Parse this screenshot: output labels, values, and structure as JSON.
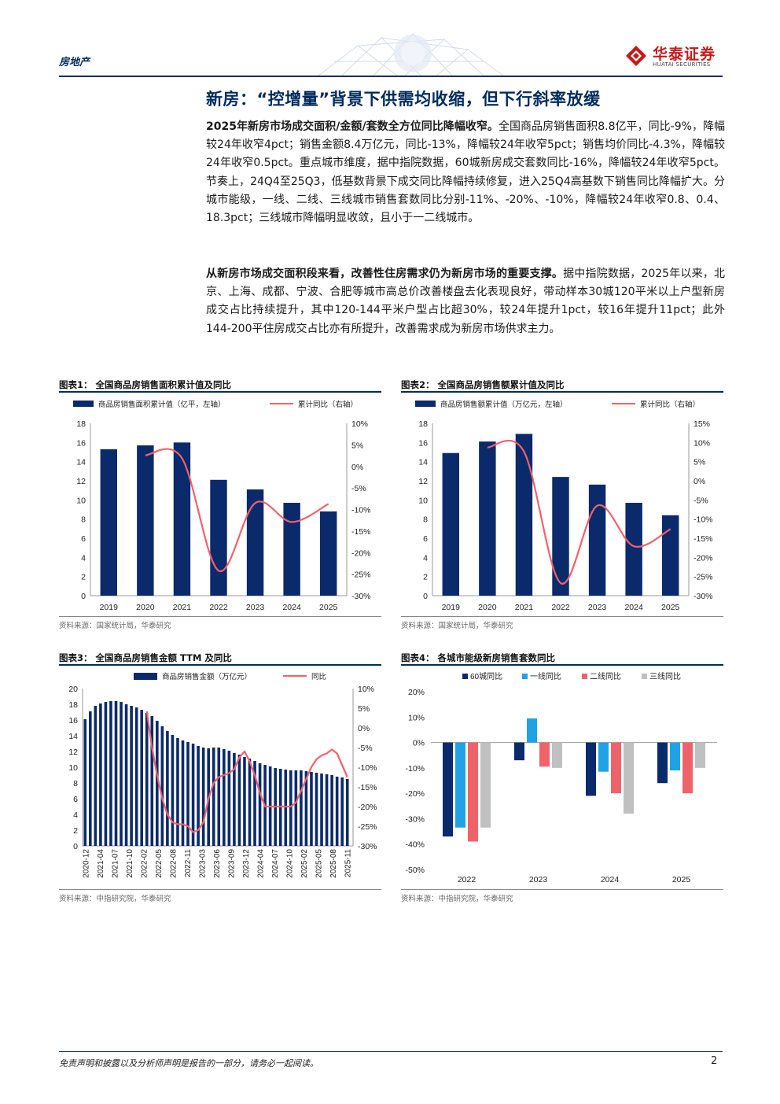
{
  "header": {
    "sector": "房地产",
    "logo_cn": "华泰证券",
    "logo_en": "HUATAI SECURITIES"
  },
  "section_title": "新房：“控增量”背景下供需均收缩，但下行斜率放缓",
  "paragraph1": {
    "bold": "2025年新房市场成交面积/金额/套数全方位同比降幅收窄。",
    "text": "全国商品房销售面积8.8亿平，同比-9%，降幅较24年收窄4pct；销售金额8.4万亿元，同比-13%，降幅较24年收窄5pct；销售均价同比-4.3%，降幅较24年收窄0.5pct。重点城市维度，据中指院数据，60城新房成交套数同比-16%，降幅较24年收窄5pct。节奏上，24Q4至25Q3，低基数背景下成交同比降幅持续修复，进入25Q4高基数下销售同比降幅扩大。分城市能级，一线、二线、三线城市销售套数同比分别-11%、-20%、-10%，降幅较24年收窄0.8、0.4、18.3pct；三线城市降幅明显收敛，且小于一二线城市。"
  },
  "paragraph2": {
    "bold": "从新房市场成交面积段来看，改善性住房需求仍为新房市场的重要支撑。",
    "text": "据中指院数据，2025年以来，北京、上海、成都、宁波、合肥等城市高总价改善楼盘去化表现良好，带动样本30城120平米以上户型新房成交占比持续提升，其中120-144平米户型占比超30%，较24年提升1pct，较16年提升11pct；此外144-200平住房成交占比亦有所提升，改善需求成为新房市场供求主力。"
  },
  "chart_data": [
    {
      "type": "bar",
      "title": "图表1：  全国商品房销售面积累计值及同比",
      "source": "资料来源：国家统计局，华泰研究",
      "categories": [
        "2019",
        "2020",
        "2021",
        "2022",
        "2023",
        "2024",
        "2025"
      ],
      "series": [
        {
          "name": "商品房销售面积累计值（亿平，左轴）",
          "type": "bar",
          "axis": "left",
          "values": [
            15.3,
            15.7,
            16.0,
            12.1,
            11.1,
            9.7,
            8.8
          ]
        },
        {
          "name": "累计同比（右轴）",
          "type": "line",
          "axis": "right",
          "values": [
            null,
            2.6,
            1.9,
            -24.2,
            -8.5,
            -12.9,
            -8.7
          ]
        }
      ],
      "ylim_left": [
        0,
        18
      ],
      "yticks_left": [
        0,
        2,
        4,
        6,
        8,
        10,
        12,
        14,
        16,
        18
      ],
      "ylim_right": [
        -30,
        10
      ],
      "yticks_right": [
        "-30%",
        "-25%",
        "-20%",
        "-15%",
        "-10%",
        "-5%",
        "0%",
        "5%",
        "10%"
      ],
      "colors": {
        "bar": "#0b2a6b",
        "line": "#f0626a"
      }
    },
    {
      "type": "bar",
      "title": "图表2：  全国商品房销售额累计值及同比",
      "source": "资料来源：国家统计局，华泰研究",
      "categories": [
        "2019",
        "2020",
        "2021",
        "2022",
        "2023",
        "2024",
        "2025"
      ],
      "series": [
        {
          "name": "商品房销售额累计值（万亿元，左轴）",
          "type": "bar",
          "axis": "left",
          "values": [
            14.9,
            16.1,
            16.9,
            12.4,
            11.6,
            9.7,
            8.4
          ]
        },
        {
          "name": "累计同比（右轴）",
          "type": "line",
          "axis": "right",
          "values": [
            null,
            8.7,
            7.6,
            -26.7,
            -6.5,
            -17.1,
            -12.6
          ]
        }
      ],
      "ylim_left": [
        0,
        18
      ],
      "yticks_left": [
        0,
        2,
        4,
        6,
        8,
        10,
        12,
        14,
        16,
        18
      ],
      "ylim_right": [
        -30,
        15
      ],
      "yticks_right": [
        "-30%",
        "-25%",
        "-20%",
        "-15%",
        "-10%",
        "-5%",
        "0%",
        "5%",
        "10%",
        "15%"
      ],
      "colors": {
        "bar": "#0b2a6b",
        "line": "#f0626a"
      }
    },
    {
      "type": "bar",
      "title": "图表3：  全国商品房销售金额 TTM 及同比",
      "source": "资料来源：中指研究院，华泰研究",
      "x_tick_labels": [
        "2020-12",
        "2021-04",
        "2021-07",
        "2021-10",
        "2022-02",
        "2022-05",
        "2022-08",
        "2022-11",
        "2023-03",
        "2023-06",
        "2023-09",
        "2023-12",
        "2024-04",
        "2024-07",
        "2024-10",
        "2025-02",
        "2025-05",
        "2025-08",
        "2025-11"
      ],
      "series": [
        {
          "name": "商品房销售金额（万亿元）",
          "type": "bar",
          "axis": "left",
          "values": [
            16.1,
            17.1,
            17.8,
            18.1,
            18.3,
            18.4,
            18.4,
            18.3,
            18.0,
            17.8,
            17.6,
            17.3,
            16.9,
            16.5,
            15.9,
            15.2,
            14.6,
            14.1,
            13.7,
            13.4,
            13.2,
            13.0,
            12.7,
            12.5,
            12.4,
            12.5,
            12.5,
            12.3,
            12.1,
            11.8,
            11.6,
            11.3,
            11.1,
            10.8,
            10.5,
            10.3,
            10.1,
            9.9,
            9.8,
            9.7,
            9.6,
            9.6,
            9.6,
            9.5,
            9.4,
            9.3,
            9.2,
            9.1,
            9.0,
            8.8,
            8.7,
            8.5
          ]
        },
        {
          "name": "同比",
          "type": "line",
          "axis": "right",
          "values": [
            null,
            null,
            null,
            null,
            null,
            null,
            null,
            null,
            null,
            null,
            null,
            null,
            4.2,
            -5,
            -12,
            -18,
            -22,
            -24,
            -24.5,
            -24.5,
            -25,
            -26.5,
            -26,
            -24,
            -18,
            -14,
            -12.5,
            -12,
            -11.5,
            -10.5,
            -7.5,
            -6,
            -8.5,
            -12,
            -16.5,
            -20,
            -20,
            -20,
            -20,
            -20,
            -20,
            -19,
            -16,
            -13,
            -10,
            -8,
            -7,
            -6.5,
            -5.5,
            -6.5,
            -9.5,
            -12.5
          ]
        }
      ],
      "ylim_left": [
        0,
        20
      ],
      "yticks_left": [
        0,
        2,
        4,
        6,
        8,
        10,
        12,
        14,
        16,
        18,
        20
      ],
      "ylim_right": [
        -30,
        10
      ],
      "yticks_right": [
        "-30%",
        "-25%",
        "-20%",
        "-15%",
        "-10%",
        "-5%",
        "0%",
        "5%",
        "10%"
      ],
      "colors": {
        "bar": "#0b2a6b",
        "line": "#f0626a"
      }
    },
    {
      "type": "bar",
      "title": "图表4：  各城市能级新房销售套数同比",
      "source": "资料来源：中指研究院，华泰研究",
      "categories": [
        "2022",
        "2023",
        "2024",
        "2025"
      ],
      "series": [
        {
          "name": "60城同比",
          "values": [
            -37,
            -7,
            -21,
            -16
          ],
          "color": "#0b2a6b"
        },
        {
          "name": "一线同比",
          "values": [
            -33.5,
            9.5,
            -11.5,
            -11
          ],
          "color": "#1fa3e6"
        },
        {
          "name": "二线同比",
          "values": [
            -39,
            -9.5,
            -20,
            -20
          ],
          "color": "#f0626a"
        },
        {
          "name": "三线同比",
          "values": [
            -33.5,
            -10,
            -28,
            -10
          ],
          "color": "#c0c0c0"
        }
      ],
      "ylim": [
        -50,
        20
      ],
      "yticks": [
        "-50%",
        "-40%",
        "-30%",
        "-20%",
        "-10%",
        "0%",
        "10%",
        "20%"
      ]
    }
  ],
  "footer": {
    "disclaimer": "免责声明和披露以及分析师声明是报告的一部分，请务必一起阅读。",
    "page": "2"
  }
}
